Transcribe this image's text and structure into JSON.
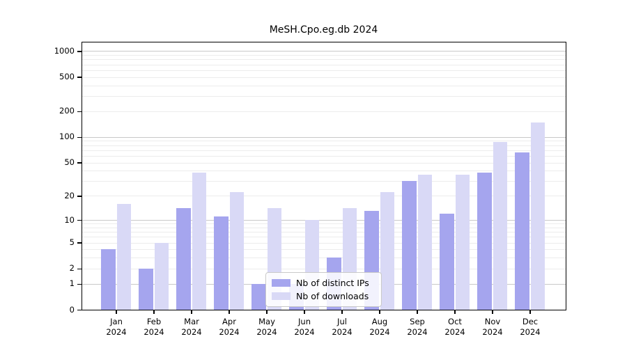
{
  "title": "MeSH.Cpo.eg.db 2024",
  "legend": {
    "items": [
      {
        "label": "Nb of distinct IPs",
        "color": "#a5a5ee"
      },
      {
        "label": "Nb of downloads",
        "color": "#d9d9f6"
      }
    ]
  },
  "axes": {
    "y_tick_labels": [
      "1000",
      "500",
      "200",
      "100",
      "50",
      "20",
      "10",
      "5",
      "2",
      "1",
      "0"
    ],
    "x_tick_year": "2024"
  },
  "chart_data": {
    "type": "bar",
    "title": "MeSH.Cpo.eg.db 2024",
    "categories": [
      "Jan",
      "Feb",
      "Mar",
      "Apr",
      "May",
      "Jun",
      "Jul",
      "Aug",
      "Sep",
      "Oct",
      "Nov",
      "Dec"
    ],
    "year": "2024",
    "series": [
      {
        "name": "Nb of distinct IPs",
        "color": "#a5a5ee",
        "values": [
          4,
          2,
          14,
          11,
          1,
          1,
          3,
          13,
          30,
          12,
          38,
          66
        ]
      },
      {
        "name": "Nb of downloads",
        "color": "#d9d9f6",
        "values": [
          16,
          5,
          38,
          22,
          14,
          10,
          14,
          22,
          36,
          36,
          87,
          148
        ]
      }
    ],
    "y_scale": "log10(value+1)",
    "y_ticks": [
      0,
      1,
      2,
      5,
      10,
      20,
      50,
      100,
      200,
      500,
      1000
    ],
    "ylim": [
      0,
      1250
    ],
    "grid": "horizontal only; darker lines at 1,10,100,1000; faint minor decade lines",
    "legend_position": "lower center inside plot"
  }
}
